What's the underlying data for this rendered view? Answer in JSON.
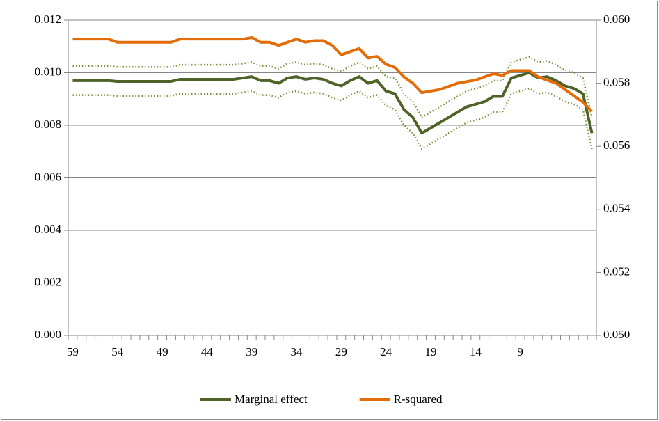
{
  "chart_data": {
    "type": "line",
    "categories": [
      "59",
      null,
      null,
      null,
      null,
      "54",
      null,
      null,
      null,
      null,
      "49",
      null,
      null,
      null,
      null,
      "44",
      null,
      null,
      null,
      null,
      "39",
      null,
      null,
      null,
      null,
      "34",
      null,
      null,
      null,
      null,
      "29",
      null,
      null,
      null,
      null,
      "24",
      null,
      null,
      null,
      null,
      "19",
      null,
      null,
      null,
      null,
      "14",
      null,
      null,
      null,
      null,
      "9",
      null,
      null,
      null,
      null,
      null,
      null,
      null,
      null
    ],
    "ylim": [
      0,
      0.012
    ],
    "yticks": [
      {
        "value": 0,
        "label": "0.000"
      },
      {
        "value": 0.002,
        "label": "0.002"
      },
      {
        "value": 0.004,
        "label": "0.004"
      },
      {
        "value": 0.006,
        "label": "0.006"
      },
      {
        "value": 0.008,
        "label": "0.008"
      },
      {
        "value": 0.01,
        "label": "0.010"
      },
      {
        "value": 0.012,
        "label": "0.012"
      }
    ],
    "y2lim": [
      0.05,
      0.06
    ],
    "y2ticks": [
      {
        "value": 0.05,
        "label": "0.050"
      },
      {
        "value": 0.052,
        "label": "0.052"
      },
      {
        "value": 0.054,
        "label": "0.054"
      },
      {
        "value": 0.056,
        "label": "0.056"
      },
      {
        "value": 0.058,
        "label": "0.058"
      },
      {
        "value": 0.06,
        "label": "0.060"
      }
    ],
    "grid": true,
    "legend": "bottom",
    "series": [
      {
        "color": "#77933c",
        "style": "dotted",
        "values": [
          0.01025,
          0.01025,
          0.01025,
          0.01025,
          0.01025,
          0.01022,
          0.01022,
          0.01022,
          0.01022,
          0.01022,
          0.01022,
          0.01022,
          0.0103,
          0.0103,
          0.0103,
          0.0103,
          0.0103,
          0.0103,
          0.0103,
          0.01035,
          0.0104,
          0.01025,
          0.01025,
          0.01015,
          0.01035,
          0.0104,
          0.0103,
          0.01035,
          0.0103,
          0.01015,
          0.01005,
          0.01025,
          0.0104,
          0.01015,
          0.01025,
          0.00985,
          0.0098,
          0.0092,
          0.0089,
          0.0083,
          0.0085,
          0.0087,
          0.0089,
          0.0091,
          0.0093,
          0.0094,
          0.0095,
          0.0097,
          0.0097,
          0.0104,
          0.0105,
          0.0106,
          0.0104,
          0.01045,
          0.0103,
          0.0101,
          0.01,
          0.0098,
          0.0083
        ]
      },
      {
        "color": "#77933c",
        "style": "dotted",
        "values": [
          0.00915,
          0.00915,
          0.00915,
          0.00915,
          0.00915,
          0.00912,
          0.00912,
          0.00912,
          0.00912,
          0.00912,
          0.00912,
          0.00912,
          0.0092,
          0.0092,
          0.0092,
          0.0092,
          0.0092,
          0.0092,
          0.0092,
          0.00925,
          0.0093,
          0.00915,
          0.00915,
          0.00905,
          0.00925,
          0.0093,
          0.0092,
          0.00925,
          0.0092,
          0.00905,
          0.00895,
          0.00915,
          0.0093,
          0.00905,
          0.00915,
          0.00875,
          0.0086,
          0.008,
          0.0077,
          0.0071,
          0.0073,
          0.0075,
          0.0077,
          0.0079,
          0.0081,
          0.0082,
          0.0083,
          0.0085,
          0.0085,
          0.0092,
          0.0093,
          0.0094,
          0.0092,
          0.00925,
          0.0091,
          0.0089,
          0.0088,
          0.0086,
          0.0071
        ]
      },
      {
        "name": "Marginal effect",
        "color": "#4f6228",
        "style": "solid",
        "values": [
          0.0097,
          0.0097,
          0.0097,
          0.0097,
          0.0097,
          0.00967,
          0.00967,
          0.00967,
          0.00967,
          0.00967,
          0.00967,
          0.00967,
          0.00975,
          0.00975,
          0.00975,
          0.00975,
          0.00975,
          0.00975,
          0.00975,
          0.0098,
          0.00985,
          0.0097,
          0.0097,
          0.0096,
          0.0098,
          0.00985,
          0.00975,
          0.0098,
          0.00975,
          0.0096,
          0.0095,
          0.0097,
          0.00985,
          0.0096,
          0.0097,
          0.0093,
          0.0092,
          0.0086,
          0.0083,
          0.0077,
          0.0079,
          0.0081,
          0.0083,
          0.0085,
          0.0087,
          0.0088,
          0.0089,
          0.0091,
          0.0091,
          0.0098,
          0.0099,
          0.01,
          0.0098,
          0.00985,
          0.0097,
          0.0095,
          0.0094,
          0.0092,
          0.0077
        ]
      },
      {
        "name": "R-squared",
        "color": "#e36c09",
        "style": "solid",
        "axis": "y2",
        "values": [
          0.0594,
          0.0594,
          0.0594,
          0.0594,
          0.0594,
          0.0593,
          0.0593,
          0.0593,
          0.0593,
          0.0593,
          0.0593,
          0.0593,
          0.0594,
          0.0594,
          0.0594,
          0.0594,
          0.0594,
          0.0594,
          0.0594,
          0.0594,
          0.05945,
          0.0593,
          0.0593,
          0.0592,
          0.0593,
          0.0594,
          0.0593,
          0.05935,
          0.05935,
          0.0592,
          0.0589,
          0.059,
          0.0591,
          0.0588,
          0.05885,
          0.0586,
          0.0585,
          0.0582,
          0.058,
          0.0577,
          0.05775,
          0.0578,
          0.0579,
          0.058,
          0.05805,
          0.0581,
          0.0582,
          0.0583,
          0.05825,
          0.0584,
          0.0584,
          0.0584,
          0.0582,
          0.0581,
          0.058,
          0.0578,
          0.0576,
          0.0574,
          0.0571
        ]
      }
    ]
  }
}
